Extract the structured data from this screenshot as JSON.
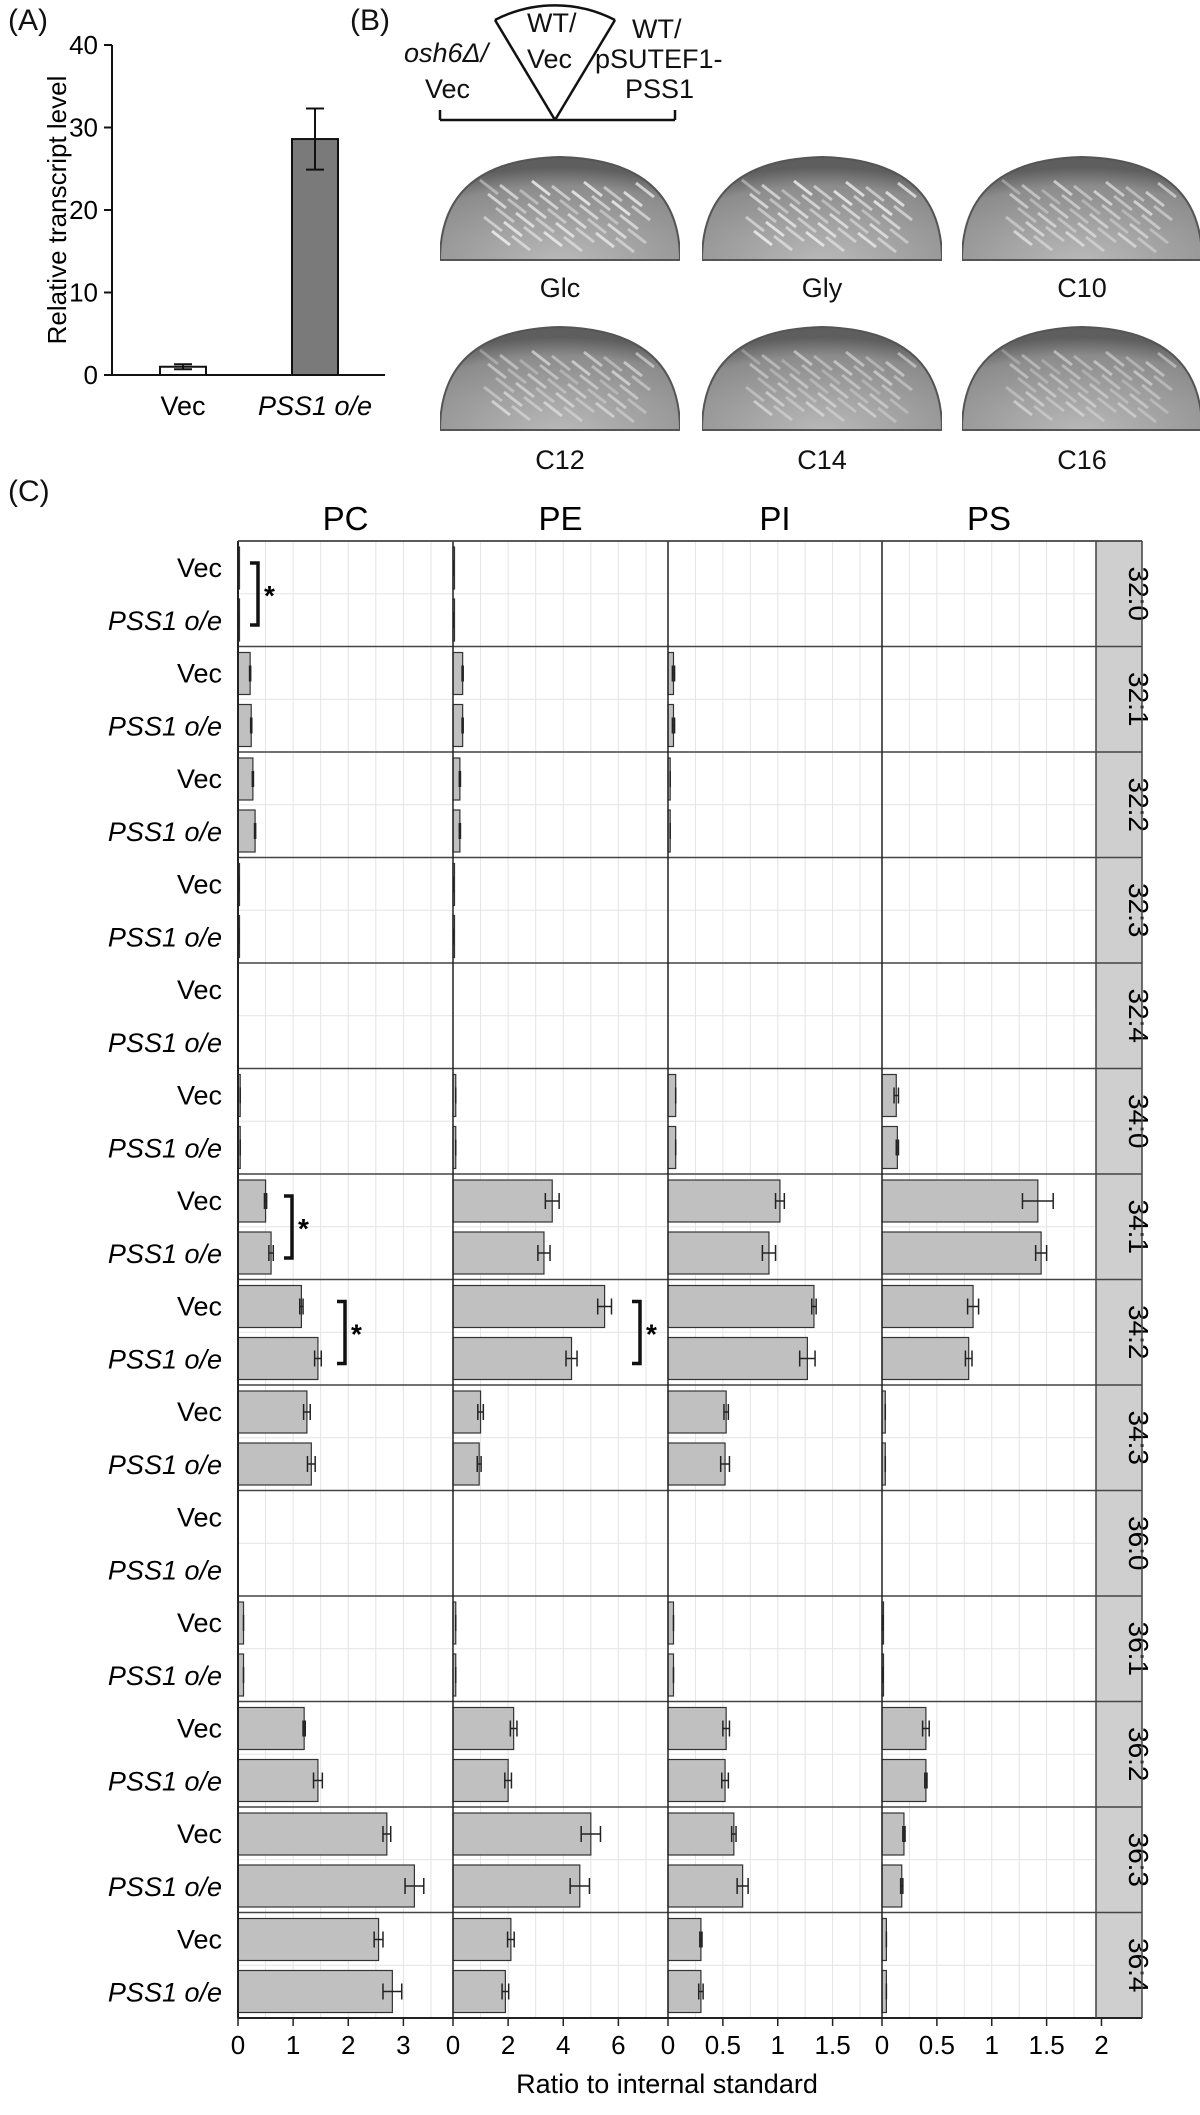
{
  "panel_labels": {
    "a": "(A)",
    "b": "(B)",
    "c": "(C)"
  },
  "panel_b": {
    "sector_labels": {
      "left_line1": "osh6Δ/",
      "left_line2": "Vec",
      "middle_line1": "WT/",
      "middle_line2": "Vec",
      "right_line1": "WT/",
      "right_line2": "pSUTEF1-",
      "right_line3": "PSS1"
    },
    "plates": [
      "Glc",
      "Gly",
      "C10",
      "C12",
      "C14",
      "C16"
    ]
  },
  "chart_data": [
    {
      "type": "bar",
      "panel": "A",
      "categories": [
        "Vec",
        "PSS1 o/e"
      ],
      "values": [
        1.0,
        28.6
      ],
      "errors": [
        0.3,
        3.7
      ],
      "ylabel": "Relative transcript level",
      "ylim": [
        0,
        40
      ],
      "yticks": [
        "0",
        "10",
        "20",
        "30",
        "40"
      ],
      "bar_colors": [
        "#ffffff",
        "#7a7a7a"
      ]
    },
    {
      "type": "bar",
      "orientation": "horizontal",
      "panel": "C",
      "xlabel": "Ratio to internal standard",
      "row_labels": [
        "Vec",
        "PSS1 o/e"
      ],
      "bar_color": "#c0c0c0",
      "species": [
        "32:0",
        "32:1",
        "32:2",
        "32:3",
        "32:4",
        "34:0",
        "34:1",
        "34:2",
        "34:3",
        "36:0",
        "36:1",
        "36:2",
        "36:3",
        "36:4"
      ],
      "columns": [
        {
          "name": "PC",
          "xmax": 3.9,
          "ticks": [
            0,
            1,
            2,
            3
          ],
          "tick_labels": [
            "0",
            "1",
            "2",
            "3"
          ]
        },
        {
          "name": "PE",
          "xmax": 7.8,
          "ticks": [
            0,
            2,
            4,
            6
          ],
          "tick_labels": [
            "0",
            "2",
            "4",
            "6"
          ]
        },
        {
          "name": "PI",
          "xmax": 1.95,
          "ticks": [
            0,
            0.5,
            1,
            1.5
          ],
          "tick_labels": [
            "0",
            "0.5",
            "1",
            "1.5"
          ]
        },
        {
          "name": "PS",
          "xmax": 1.95,
          "ticks": [
            0,
            0.5,
            1,
            1.5,
            2
          ],
          "tick_labels": [
            "0",
            "0.5",
            "1",
            "1.5",
            "2"
          ]
        }
      ],
      "values": {
        "PC": {
          "Vec": [
            0.01,
            0.22,
            0.27,
            0.02,
            0.0,
            0.04,
            0.5,
            1.15,
            1.25,
            0.0,
            0.1,
            1.2,
            2.7,
            2.55
          ],
          "PSS1 o/e": [
            0.01,
            0.24,
            0.31,
            0.02,
            0.0,
            0.04,
            0.6,
            1.45,
            1.33,
            0.0,
            0.1,
            1.45,
            3.2,
            2.8
          ]
        },
        "PE": {
          "Vec": [
            0.02,
            0.35,
            0.25,
            0.02,
            0.0,
            0.1,
            3.6,
            5.5,
            1.0,
            0.0,
            0.1,
            2.2,
            5.0,
            2.1
          ],
          "PSS1 o/e": [
            0.02,
            0.35,
            0.25,
            0.02,
            0.0,
            0.1,
            3.3,
            4.3,
            0.95,
            0.0,
            0.1,
            2.0,
            4.6,
            1.9
          ]
        },
        "PI": {
          "Vec": [
            0.0,
            0.05,
            0.02,
            0.0,
            0.0,
            0.07,
            1.02,
            1.33,
            0.53,
            0.0,
            0.05,
            0.53,
            0.6,
            0.3
          ],
          "PSS1 o/e": [
            0.0,
            0.05,
            0.02,
            0.0,
            0.0,
            0.07,
            0.92,
            1.27,
            0.52,
            0.0,
            0.05,
            0.52,
            0.68,
            0.3
          ]
        },
        "PS": {
          "Vec": [
            0.0,
            0.0,
            0.0,
            0.0,
            0.0,
            0.13,
            1.42,
            0.83,
            0.03,
            0.0,
            0.01,
            0.4,
            0.2,
            0.04
          ],
          "PSS1 o/e": [
            0.0,
            0.0,
            0.0,
            0.0,
            0.0,
            0.14,
            1.45,
            0.79,
            0.03,
            0.0,
            0.01,
            0.4,
            0.18,
            0.04
          ]
        }
      },
      "errors": {
        "PC": {
          "Vec": [
            0,
            0.01,
            0.01,
            0,
            0,
            0,
            0.02,
            0.03,
            0.06,
            0,
            0,
            0.02,
            0.07,
            0.08
          ],
          "PSS1 o/e": [
            0,
            0.01,
            0.01,
            0,
            0,
            0,
            0.04,
            0.06,
            0.07,
            0,
            0,
            0.08,
            0.17,
            0.17
          ]
        },
        "PE": {
          "Vec": [
            0,
            0.02,
            0.02,
            0,
            0,
            0,
            0.25,
            0.25,
            0.1,
            0,
            0,
            0.12,
            0.35,
            0.12
          ],
          "PSS1 o/e": [
            0,
            0.02,
            0.02,
            0,
            0,
            0,
            0.22,
            0.2,
            0.07,
            0,
            0,
            0.12,
            0.35,
            0.12
          ]
        },
        "PI": {
          "Vec": [
            0,
            0.01,
            0,
            0,
            0,
            0,
            0.04,
            0.02,
            0.02,
            0,
            0,
            0.03,
            0.02,
            0.01
          ],
          "PSS1 o/e": [
            0,
            0.01,
            0,
            0,
            0,
            0,
            0.06,
            0.07,
            0.04,
            0,
            0,
            0.03,
            0.05,
            0.02
          ]
        },
        "PS": {
          "Vec": [
            0,
            0,
            0,
            0,
            0,
            0.02,
            0.14,
            0.05,
            0,
            0,
            0,
            0.03,
            0.01,
            0
          ],
          "PSS1 o/e": [
            0,
            0,
            0,
            0,
            0,
            0.01,
            0.05,
            0.03,
            0,
            0,
            0,
            0.01,
            0.01,
            0
          ]
        }
      },
      "significance": [
        {
          "species": "32:0",
          "column": "PC",
          "symbol": "*"
        },
        {
          "species": "34:1",
          "column": "PC",
          "symbol": "*"
        },
        {
          "species": "34:2",
          "column": "PC",
          "symbol": "*"
        },
        {
          "species": "34:2",
          "column": "PE",
          "symbol": "*"
        }
      ]
    }
  ]
}
